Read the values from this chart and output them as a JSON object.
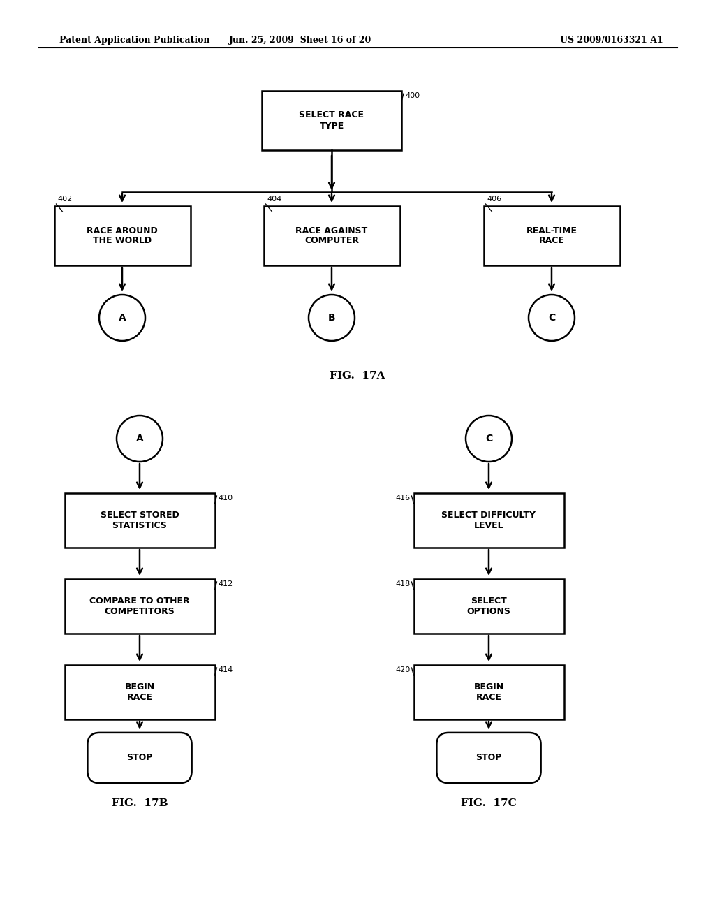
{
  "bg_color": "#ffffff",
  "header_left": "Patent Application Publication",
  "header_center": "Jun. 25, 2009  Sheet 16 of 20",
  "header_right": "US 2009/0163321 A1",
  "fig17a_label": "FIG.  17A",
  "fig17b_label": "FIG.  17B",
  "fig17c_label": "FIG.  17C",
  "font_size_box": 9,
  "font_size_label": 8,
  "font_size_header": 9,
  "font_size_fig": 11,
  "font_size_circle": 10
}
